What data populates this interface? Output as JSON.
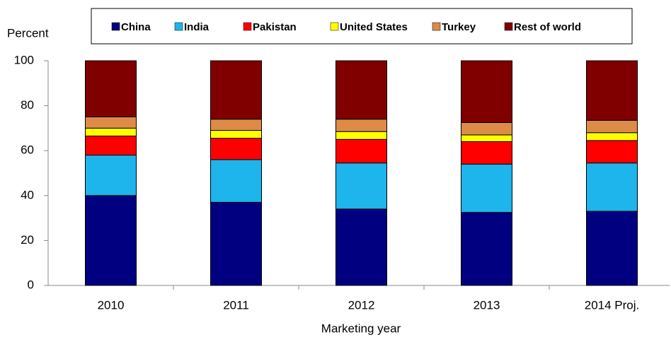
{
  "chart_data": {
    "type": "stacked-bar",
    "y_label": "Percent",
    "x_label": "Marketing year",
    "categories": [
      "2010",
      "2011",
      "2012",
      "2013",
      "2014 Proj."
    ],
    "series": [
      {
        "name": "China",
        "color": "#000080",
        "values": [
          40,
          37,
          34,
          32.5,
          33
        ]
      },
      {
        "name": "India",
        "color": "#1eb4ec",
        "values": [
          18,
          19,
          20.5,
          21.5,
          21.5
        ]
      },
      {
        "name": "Pakistan",
        "color": "#ff0000",
        "values": [
          8.5,
          9.5,
          10.5,
          10,
          10
        ]
      },
      {
        "name": "United States",
        "color": "#ffff00",
        "values": [
          3.5,
          3.5,
          3.5,
          3,
          3.5
        ]
      },
      {
        "name": "Turkey",
        "color": "#dd8c48",
        "values": [
          5,
          5,
          5.5,
          5.5,
          5.5
        ]
      },
      {
        "name": "Rest of world",
        "color": "#800000",
        "values": [
          25,
          26,
          26,
          27.5,
          26.5
        ]
      }
    ],
    "ylim": [
      0,
      100
    ],
    "yticks": [
      0,
      20,
      40,
      60,
      80,
      100
    ],
    "grid": false
  }
}
